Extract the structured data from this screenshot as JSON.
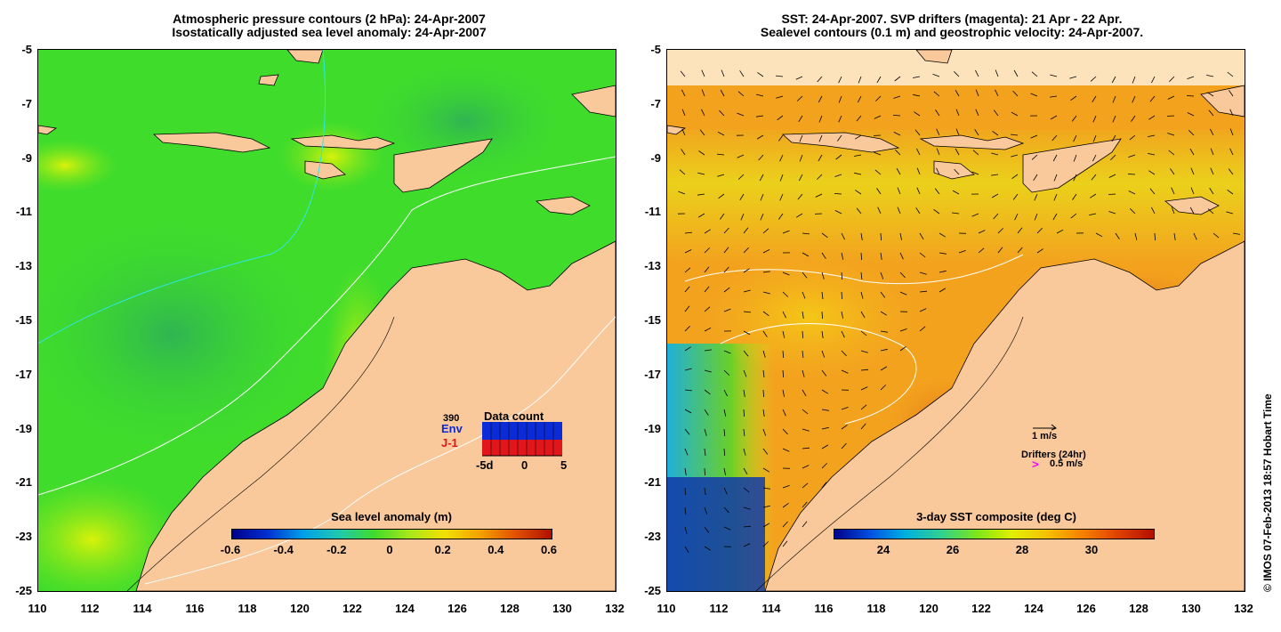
{
  "left": {
    "title_line1": "Atmospheric pressure contours (2 hPa): 24-Apr-2007",
    "title_line2": "Isostatically adjusted sea level anomaly: 24-Apr-2007",
    "colorbar_title": "Sea level anomaly (m)",
    "colorbar_ticks": [
      "-0.6",
      "-0.4",
      "-0.2",
      "0",
      "0.2",
      "0.4",
      "0.6"
    ],
    "data_count": {
      "number": "390",
      "env_label": "Env",
      "j1_label": "J-1",
      "title": "Data count",
      "axis_ticks": [
        "-5d",
        "0",
        "5"
      ],
      "env_color": "#0a2bd6",
      "j1_color": "#e0161b"
    }
  },
  "right": {
    "title_line1": "SST: 24-Apr-2007. SVP drifters (magenta): 21 Apr - 22 Apr.",
    "title_line2": "Sealevel contours (0.1 m) and geostrophic velocity: 24-Apr-2007.",
    "colorbar_title": "3-day SST composite (deg C)",
    "colorbar_ticks": [
      "24",
      "26",
      "28",
      "30"
    ],
    "velocity_legend": "1 m/s",
    "drifters_label": "Drifters (24hr)",
    "drifters_speed": "0.5 m/s",
    "drifter_color": "#ff00ff"
  },
  "axes": {
    "y_ticks": [
      "-5",
      "-7",
      "-9",
      "-11",
      "-13",
      "-15",
      "-17",
      "-19",
      "-21",
      "-23",
      "-25"
    ],
    "x_ticks": [
      "110",
      "112",
      "114",
      "116",
      "118",
      "120",
      "122",
      "124",
      "126",
      "128",
      "130",
      "132"
    ]
  },
  "colors": {
    "land": "#f9c89b",
    "ocean_left": "#3fdc2c",
    "ocean_right": "#f3a21e"
  },
  "copyright": "© IMOS 07-Feb-2013 18:57 Hobart Time"
}
